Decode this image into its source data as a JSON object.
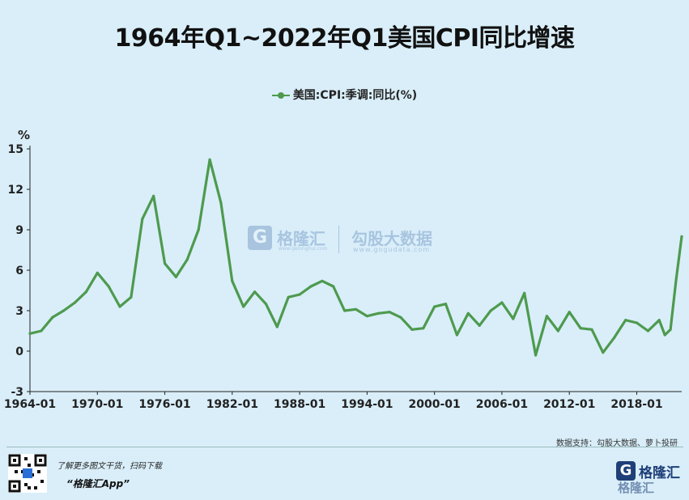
{
  "title": "1964年Q1~2022年Q1美国CPI同比增速",
  "legend": "美国:CPI:季调:同比(%)",
  "y_unit": "%",
  "watermark": {
    "brand_cn": "格隆汇",
    "brand_url": "www.gelonghui.com",
    "partner_cn": "勾股大数据",
    "partner_url": "www.gogudata.com"
  },
  "source": "数据支持：勾股大数据、萝卜投研",
  "promo": {
    "line1": "了解更多图文干货，扫码下载",
    "line2": "“格隆汇App”"
  },
  "logo": {
    "icon": "G",
    "brand_cn": "格隆汇"
  },
  "colors": {
    "line": "#4e9a4e",
    "background": "#d9eef9",
    "axis": "#222222"
  },
  "chart_data": {
    "type": "line",
    "series": [
      {
        "name": "美国:CPI:季调:同比(%)",
        "x": [
          "1964-01",
          "1965-01",
          "1966-01",
          "1967-01",
          "1968-01",
          "1969-01",
          "1970-01",
          "1971-01",
          "1972-01",
          "1973-01",
          "1974-01",
          "1975-01",
          "1976-01",
          "1977-01",
          "1978-01",
          "1979-01",
          "1980-01",
          "1981-01",
          "1982-01",
          "1983-01",
          "1984-01",
          "1985-01",
          "1986-01",
          "1987-01",
          "1988-01",
          "1989-01",
          "1990-01",
          "1991-01",
          "1992-01",
          "1993-01",
          "1994-01",
          "1995-01",
          "1996-01",
          "1997-01",
          "1998-01",
          "1999-01",
          "2000-01",
          "2001-01",
          "2002-01",
          "2003-01",
          "2004-01",
          "2005-01",
          "2006-01",
          "2007-01",
          "2008-01",
          "2009-01",
          "2010-01",
          "2011-01",
          "2012-01",
          "2013-01",
          "2014-01",
          "2015-01",
          "2016-01",
          "2017-01",
          "2018-01",
          "2019-01",
          "2020-01",
          "2020-07",
          "2021-01",
          "2021-07",
          "2022-01"
        ],
        "values": [
          1.3,
          1.5,
          2.5,
          3.0,
          3.6,
          4.4,
          5.8,
          4.8,
          3.3,
          4.0,
          9.8,
          11.5,
          6.5,
          5.5,
          6.8,
          9.0,
          14.2,
          11.0,
          5.2,
          3.3,
          4.4,
          3.5,
          1.8,
          4.0,
          4.2,
          4.8,
          5.2,
          4.8,
          3.0,
          3.1,
          2.6,
          2.8,
          2.9,
          2.5,
          1.6,
          1.7,
          3.3,
          3.5,
          1.2,
          2.8,
          1.9,
          3.0,
          3.6,
          2.4,
          4.3,
          -0.3,
          2.6,
          1.5,
          2.9,
          1.7,
          1.6,
          -0.1,
          1.0,
          2.3,
          2.1,
          1.5,
          2.3,
          1.2,
          1.6,
          5.3,
          8.5
        ]
      }
    ],
    "x_ticks": [
      "1964-01",
      "1970-01",
      "1976-01",
      "1982-01",
      "1988-01",
      "1994-01",
      "2000-01",
      "2006-01",
      "2012-01",
      "2018-01"
    ],
    "y_ticks": [
      -3,
      0,
      3,
      6,
      9,
      12,
      15
    ],
    "xlim": [
      "1964-01",
      "2022-01"
    ],
    "ylim": [
      -3,
      15
    ],
    "title": "1964年Q1~2022年Q1美国CPI同比增速",
    "ylabel": "%",
    "xlabel": "",
    "grid": false,
    "legend_position": "top-center"
  }
}
